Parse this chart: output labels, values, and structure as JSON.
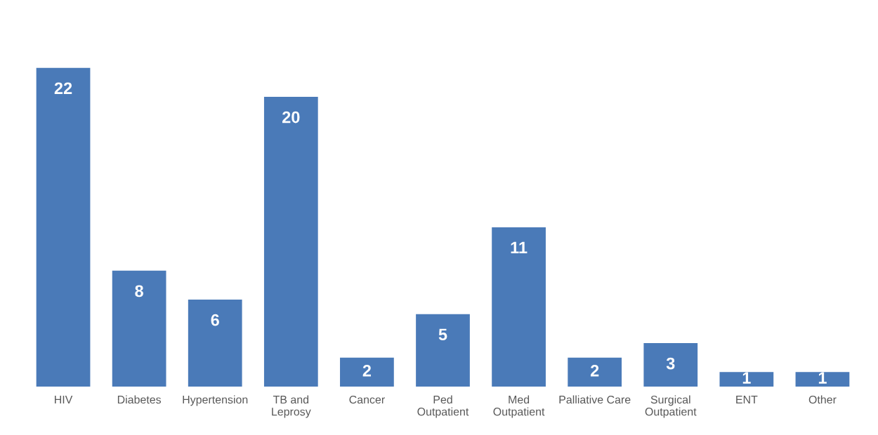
{
  "chart_data": {
    "type": "bar",
    "categories": [
      "HIV",
      "Diabetes",
      "Hypertension",
      "TB and\nLeprosy",
      "Cancer",
      "Ped\nOutpatient",
      "Med\nOutpatient",
      "Palliative Care",
      "Surgical\nOutpatient",
      "ENT",
      "Other"
    ],
    "values": [
      22,
      8,
      6,
      20,
      2,
      5,
      11,
      2,
      3,
      1,
      1
    ],
    "color": "#4a7ab8",
    "data_labels": true
  }
}
